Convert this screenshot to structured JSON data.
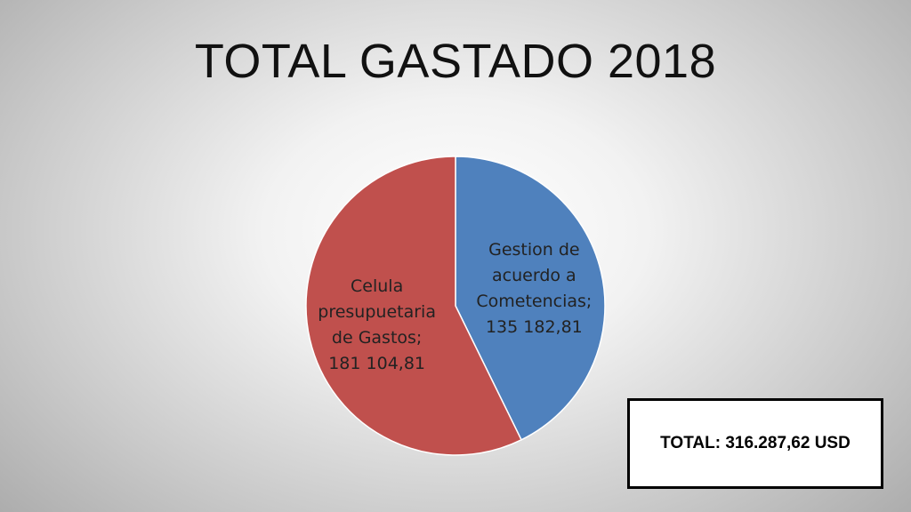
{
  "title": "TOTAL GASTADO 2018",
  "chart_data": {
    "type": "pie",
    "slices": [
      {
        "name": "Gestion de acuerdo a Cometencias",
        "value": 135182.81,
        "label_lines": [
          "Gestion de",
          "acuerdo a",
          "Cometencias;",
          "135 182,81"
        ],
        "color": "#4f81bd"
      },
      {
        "name": "Celula presupuetaria de Gastos",
        "value": 181104.81,
        "label_lines": [
          "Celula",
          "presupuetaria",
          "de Gastos;",
          "181 104,81"
        ],
        "color": "#c0504d"
      }
    ],
    "start_angle": "12 o'clock",
    "direction": "clockwise",
    "legend": "none"
  },
  "total": "TOTAL: 316.287,62 USD"
}
